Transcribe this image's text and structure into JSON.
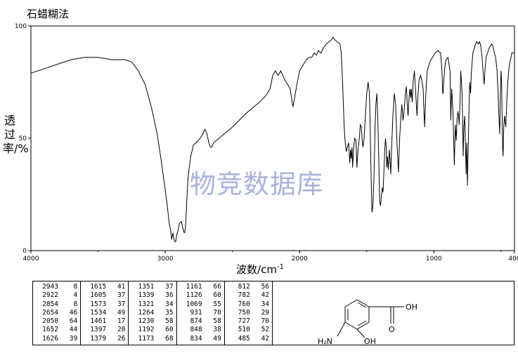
{
  "header": {
    "method": "石蜡糊法"
  },
  "watermark": "物竞数据库",
  "chart_data": {
    "type": "line",
    "xlabel": "波数/cm",
    "xlabel_sup": "-1",
    "ylabel": "透过率/%",
    "xlim": [
      4000,
      400
    ],
    "ylim": [
      0,
      100
    ],
    "x_ticks": [
      "4000",
      "3000",
      "2000",
      "1000",
      "400"
    ],
    "y_ticks": [
      "0",
      "50",
      "100"
    ],
    "series": [
      {
        "values": [
          [
            4000,
            79
          ],
          [
            3900,
            81
          ],
          [
            3800,
            83
          ],
          [
            3700,
            85
          ],
          [
            3600,
            86
          ],
          [
            3500,
            86
          ],
          [
            3400,
            85
          ],
          [
            3300,
            85
          ],
          [
            3250,
            84
          ],
          [
            3200,
            80
          ],
          [
            3150,
            74
          ],
          [
            3100,
            63
          ],
          [
            3060,
            52
          ],
          [
            3030,
            40
          ],
          [
            3000,
            27
          ],
          [
            2985,
            20
          ],
          [
            2970,
            12
          ],
          [
            2960,
            9
          ],
          [
            2952,
            5
          ],
          [
            2943,
            8
          ],
          [
            2935,
            5
          ],
          [
            2928,
            4
          ],
          [
            2922,
            4
          ],
          [
            2915,
            7
          ],
          [
            2905,
            9
          ],
          [
            2895,
            12
          ],
          [
            2880,
            13
          ],
          [
            2868,
            10
          ],
          [
            2860,
            8
          ],
          [
            2854,
            8
          ],
          [
            2848,
            12
          ],
          [
            2840,
            22
          ],
          [
            2830,
            33
          ],
          [
            2810,
            42
          ],
          [
            2790,
            47
          ],
          [
            2770,
            48
          ],
          [
            2740,
            50
          ],
          [
            2720,
            52
          ],
          [
            2705,
            54
          ],
          [
            2690,
            52
          ],
          [
            2675,
            48
          ],
          [
            2664,
            46
          ],
          [
            2654,
            46
          ],
          [
            2640,
            48
          ],
          [
            2600,
            50
          ],
          [
            2500,
            55
          ],
          [
            2400,
            61
          ],
          [
            2300,
            66
          ],
          [
            2250,
            69
          ],
          [
            2220,
            72
          ],
          [
            2200,
            78
          ],
          [
            2180,
            80
          ],
          [
            2160,
            78
          ],
          [
            2140,
            80
          ],
          [
            2110,
            76
          ],
          [
            2090,
            74
          ],
          [
            2070,
            72
          ],
          [
            2060,
            68
          ],
          [
            2050,
            64
          ],
          [
            2040,
            67
          ],
          [
            2020,
            74
          ],
          [
            2000,
            80
          ],
          [
            1970,
            83
          ],
          [
            1950,
            85
          ],
          [
            1930,
            86
          ],
          [
            1910,
            86
          ],
          [
            1890,
            88
          ],
          [
            1875,
            87
          ],
          [
            1860,
            89
          ],
          [
            1840,
            88
          ],
          [
            1825,
            90
          ],
          [
            1800,
            92
          ],
          [
            1780,
            93
          ],
          [
            1760,
            94
          ],
          [
            1750,
            95
          ],
          [
            1740,
            94
          ],
          [
            1720,
            93
          ],
          [
            1700,
            92
          ],
          [
            1690,
            88
          ],
          [
            1680,
            75
          ],
          [
            1668,
            55
          ],
          [
            1660,
            48
          ],
          [
            1652,
            44
          ],
          [
            1645,
            46
          ],
          [
            1635,
            48
          ],
          [
            1626,
            39
          ],
          [
            1620,
            45
          ],
          [
            1615,
            41
          ],
          [
            1610,
            46
          ],
          [
            1605,
            37
          ],
          [
            1598,
            45
          ],
          [
            1590,
            50
          ],
          [
            1580,
            49
          ],
          [
            1573,
            37
          ],
          [
            1565,
            45
          ],
          [
            1555,
            50
          ],
          [
            1548,
            56
          ],
          [
            1540,
            55
          ],
          [
            1534,
            49
          ],
          [
            1528,
            46
          ],
          [
            1520,
            50
          ],
          [
            1510,
            60
          ],
          [
            1500,
            70
          ],
          [
            1490,
            75
          ],
          [
            1480,
            70
          ],
          [
            1474,
            55
          ],
          [
            1468,
            35
          ],
          [
            1461,
            17
          ],
          [
            1454,
            20
          ],
          [
            1445,
            35
          ],
          [
            1438,
            55
          ],
          [
            1432,
            65
          ],
          [
            1425,
            70
          ],
          [
            1418,
            60
          ],
          [
            1410,
            40
          ],
          [
            1404,
            22
          ],
          [
            1397,
            20
          ],
          [
            1390,
            25
          ],
          [
            1384,
            28
          ],
          [
            1379,
            26
          ],
          [
            1372,
            35
          ],
          [
            1366,
            45
          ],
          [
            1360,
            50
          ],
          [
            1354,
            45
          ],
          [
            1351,
            37
          ],
          [
            1346,
            42
          ],
          [
            1339,
            36
          ],
          [
            1332,
            45
          ],
          [
            1326,
            40
          ],
          [
            1321,
            34
          ],
          [
            1315,
            45
          ],
          [
            1305,
            60
          ],
          [
            1295,
            70
          ],
          [
            1285,
            65
          ],
          [
            1275,
            48
          ],
          [
            1264,
            35
          ],
          [
            1255,
            50
          ],
          [
            1245,
            60
          ],
          [
            1238,
            65
          ],
          [
            1230,
            58
          ],
          [
            1222,
            62
          ],
          [
            1212,
            70
          ],
          [
            1205,
            73
          ],
          [
            1198,
            65
          ],
          [
            1192,
            60
          ],
          [
            1185,
            68
          ],
          [
            1178,
            72
          ],
          [
            1173,
            68
          ],
          [
            1168,
            72
          ],
          [
            1161,
            66
          ],
          [
            1155,
            75
          ],
          [
            1145,
            80
          ],
          [
            1135,
            70
          ],
          [
            1126,
            60
          ],
          [
            1118,
            70
          ],
          [
            1110,
            76
          ],
          [
            1100,
            78
          ],
          [
            1090,
            76
          ],
          [
            1080,
            72
          ],
          [
            1069,
            55
          ],
          [
            1060,
            70
          ],
          [
            1050,
            80
          ],
          [
            1040,
            82
          ],
          [
            1030,
            84
          ],
          [
            1010,
            86
          ],
          [
            990,
            88
          ],
          [
            970,
            89
          ],
          [
            950,
            88
          ],
          [
            940,
            80
          ],
          [
            934,
            70
          ],
          [
            931,
            70
          ],
          [
            926,
            76
          ],
          [
            918,
            82
          ],
          [
            910,
            85
          ],
          [
            895,
            86
          ],
          [
            880,
            80
          ],
          [
            874,
            58
          ],
          [
            868,
            72
          ],
          [
            858,
            62
          ],
          [
            848,
            38
          ],
          [
            843,
            50
          ],
          [
            840,
            56
          ],
          [
            834,
            49
          ],
          [
            828,
            58
          ],
          [
            822,
            62
          ],
          [
            816,
            60
          ],
          [
            812,
            56
          ],
          [
            806,
            65
          ],
          [
            800,
            80
          ],
          [
            792,
            72
          ],
          [
            786,
            60
          ],
          [
            782,
            42
          ],
          [
            777,
            55
          ],
          [
            770,
            60
          ],
          [
            764,
            45
          ],
          [
            760,
            34
          ],
          [
            756,
            48
          ],
          [
            752,
            38
          ],
          [
            750,
            29
          ],
          [
            745,
            45
          ],
          [
            738,
            65
          ],
          [
            733,
            75
          ],
          [
            727,
            70
          ],
          [
            720,
            80
          ],
          [
            710,
            88
          ],
          [
            700,
            90
          ],
          [
            690,
            92
          ],
          [
            680,
            93
          ],
          [
            670,
            92
          ],
          [
            660,
            93
          ],
          [
            650,
            91
          ],
          [
            640,
            85
          ],
          [
            632,
            78
          ],
          [
            626,
            74
          ],
          [
            620,
            80
          ],
          [
            612,
            86
          ],
          [
            600,
            88
          ],
          [
            590,
            90
          ],
          [
            580,
            91
          ],
          [
            570,
            92
          ],
          [
            560,
            91
          ],
          [
            550,
            88
          ],
          [
            540,
            86
          ],
          [
            530,
            80
          ],
          [
            522,
            70
          ],
          [
            516,
            60
          ],
          [
            510,
            52
          ],
          [
            505,
            70
          ],
          [
            500,
            80
          ],
          [
            496,
            75
          ],
          [
            491,
            55
          ],
          [
            488,
            45
          ],
          [
            485,
            42
          ],
          [
            480,
            55
          ],
          [
            475,
            60
          ],
          [
            465,
            55
          ],
          [
            458,
            65
          ],
          [
            450,
            75
          ],
          [
            440,
            82
          ],
          [
            430,
            85
          ],
          [
            420,
            88
          ],
          [
            410,
            88
          ],
          [
            400,
            88
          ]
        ]
      }
    ],
    "peak_table": [
      [
        [
          "2943",
          "8"
        ],
        [
          "2922",
          "4"
        ],
        [
          "2854",
          "8"
        ],
        [
          "2654",
          "46"
        ],
        [
          "2050",
          "64"
        ],
        [
          "1652",
          "44"
        ],
        [
          "1626",
          "39"
        ]
      ],
      [
        [
          "1615",
          "41"
        ],
        [
          "1605",
          "37"
        ],
        [
          "1573",
          "37"
        ],
        [
          "1534",
          "49"
        ],
        [
          "1461",
          "17"
        ],
        [
          "1397",
          "20"
        ],
        [
          "1379",
          "26"
        ]
      ],
      [
        [
          "1351",
          "37"
        ],
        [
          "1339",
          "36"
        ],
        [
          "1321",
          "34"
        ],
        [
          "1264",
          "35"
        ],
        [
          "1230",
          "58"
        ],
        [
          "1192",
          "60"
        ],
        [
          "1173",
          "68"
        ]
      ],
      [
        [
          "1161",
          "66"
        ],
        [
          "1126",
          "60"
        ],
        [
          "1069",
          "55"
        ],
        [
          "931",
          "70"
        ],
        [
          "874",
          "58"
        ],
        [
          "848",
          "38"
        ],
        [
          "834",
          "49"
        ]
      ],
      [
        [
          "812",
          "56"
        ],
        [
          "782",
          "42"
        ],
        [
          "760",
          "34"
        ],
        [
          "750",
          "29"
        ],
        [
          "727",
          "70"
        ],
        [
          "510",
          "52"
        ],
        [
          "485",
          "42"
        ]
      ]
    ]
  },
  "structure": {
    "oh_acid": "OH",
    "oxygen": "O",
    "oh_phenol": "OH",
    "amine": "H₂N"
  }
}
